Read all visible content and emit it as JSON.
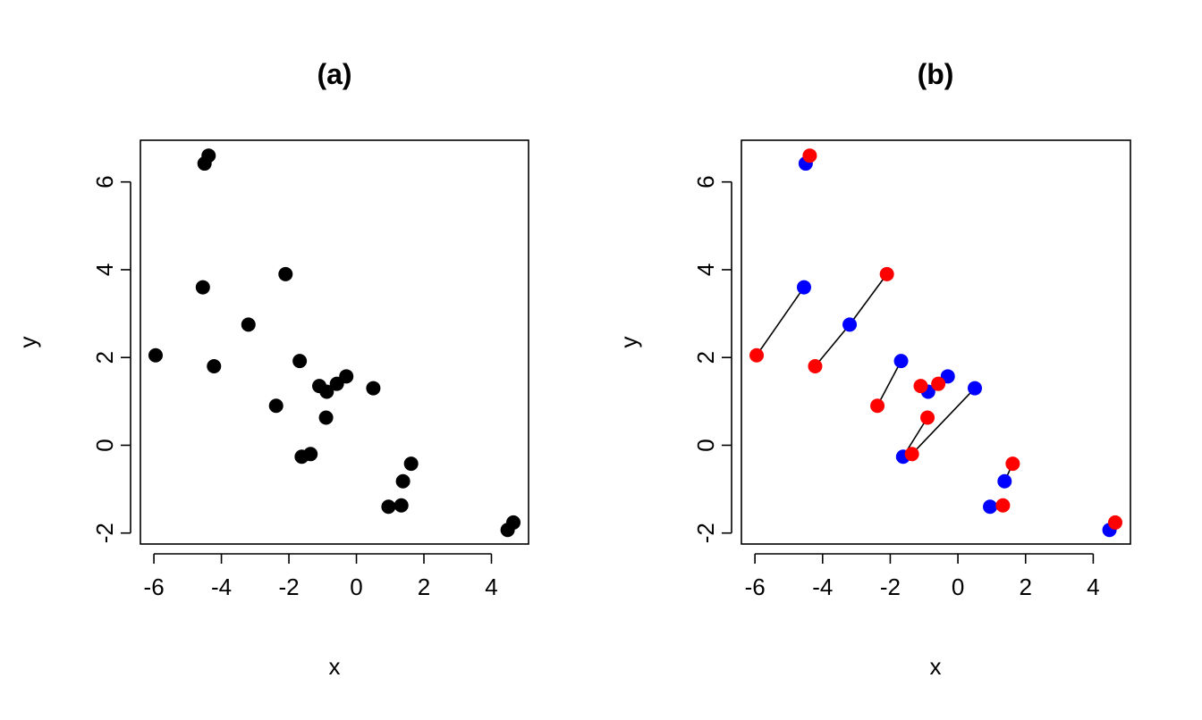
{
  "chart_data": [
    {
      "type": "scatter",
      "title": "(a)",
      "xlabel": "x",
      "ylabel": "y",
      "xlim": [
        -6.4,
        5.1
      ],
      "ylim": [
        -2.25,
        6.95
      ],
      "xticks": [
        -6,
        -4,
        -2,
        0,
        2,
        4
      ],
      "yticks": [
        -2,
        0,
        2,
        4,
        6
      ],
      "xtick_labels": [
        "-6",
        "-4",
        "-2",
        "0",
        "2",
        "4"
      ],
      "ytick_labels": [
        "-2",
        "0",
        "2",
        "4",
        "6"
      ],
      "grid": false,
      "point_color": "#000000",
      "points": [
        {
          "x": -4.5,
          "y": 6.42
        },
        {
          "x": -4.38,
          "y": 6.6
        },
        {
          "x": -4.55,
          "y": 3.6
        },
        {
          "x": -2.1,
          "y": 3.9
        },
        {
          "x": -3.2,
          "y": 2.75
        },
        {
          "x": -5.95,
          "y": 2.05
        },
        {
          "x": -4.22,
          "y": 1.8
        },
        {
          "x": -1.68,
          "y": 1.92
        },
        {
          "x": -2.38,
          "y": 0.9
        },
        {
          "x": -1.1,
          "y": 1.35
        },
        {
          "x": -0.88,
          "y": 1.22
        },
        {
          "x": -0.58,
          "y": 1.4
        },
        {
          "x": -0.3,
          "y": 1.57
        },
        {
          "x": 0.5,
          "y": 1.3
        },
        {
          "x": -0.9,
          "y": 0.63
        },
        {
          "x": -1.62,
          "y": -0.26
        },
        {
          "x": -1.36,
          "y": -0.2
        },
        {
          "x": 1.62,
          "y": -0.42
        },
        {
          "x": 1.38,
          "y": -0.82
        },
        {
          "x": 0.95,
          "y": -1.4
        },
        {
          "x": 1.33,
          "y": -1.37
        },
        {
          "x": 4.48,
          "y": -1.93
        },
        {
          "x": 4.65,
          "y": -1.76
        }
      ]
    },
    {
      "type": "scatter",
      "title": "(b)",
      "xlabel": "x",
      "ylabel": "y",
      "xlim": [
        -6.4,
        5.1
      ],
      "ylim": [
        -2.25,
        6.95
      ],
      "xticks": [
        -6,
        -4,
        -2,
        0,
        2,
        4
      ],
      "yticks": [
        -2,
        0,
        2,
        4,
        6
      ],
      "xtick_labels": [
        "-6",
        "-4",
        "-2",
        "0",
        "2",
        "4"
      ],
      "ytick_labels": [
        "-2",
        "0",
        "2",
        "4",
        "6"
      ],
      "grid": false,
      "colors": {
        "blue": "#0000ff",
        "red": "#ff0000",
        "segment": "#000000"
      },
      "pairs": [
        {
          "blue": {
            "x": -4.5,
            "y": 6.42
          },
          "red": {
            "x": -4.38,
            "y": 6.6
          }
        },
        {
          "blue": {
            "x": -4.55,
            "y": 3.6
          },
          "red": {
            "x": -5.95,
            "y": 2.05
          }
        },
        {
          "blue": {
            "x": -3.2,
            "y": 2.75
          },
          "red": {
            "x": -2.1,
            "y": 3.9
          }
        },
        {
          "blue": {
            "x": -3.2,
            "y": 2.75
          },
          "red": {
            "x": -4.22,
            "y": 1.8
          }
        },
        {
          "blue": {
            "x": -1.68,
            "y": 1.92
          },
          "red": {
            "x": -2.38,
            "y": 0.9
          }
        },
        {
          "blue": {
            "x": -0.88,
            "y": 1.22
          },
          "red": {
            "x": -1.1,
            "y": 1.35
          }
        },
        {
          "blue": {
            "x": -0.3,
            "y": 1.57
          },
          "red": {
            "x": -0.58,
            "y": 1.4
          }
        },
        {
          "blue": {
            "x": -1.62,
            "y": -0.26
          },
          "red": {
            "x": -0.9,
            "y": 0.63
          }
        },
        {
          "blue": {
            "x": 0.5,
            "y": 1.3
          },
          "red": {
            "x": -1.36,
            "y": -0.2
          }
        },
        {
          "blue": {
            "x": 1.38,
            "y": -0.82
          },
          "red": {
            "x": 1.62,
            "y": -0.42
          }
        },
        {
          "blue": {
            "x": 0.95,
            "y": -1.4
          },
          "red": {
            "x": 1.33,
            "y": -1.37
          }
        },
        {
          "blue": {
            "x": 4.48,
            "y": -1.93
          },
          "red": {
            "x": 4.65,
            "y": -1.76
          }
        }
      ]
    }
  ]
}
